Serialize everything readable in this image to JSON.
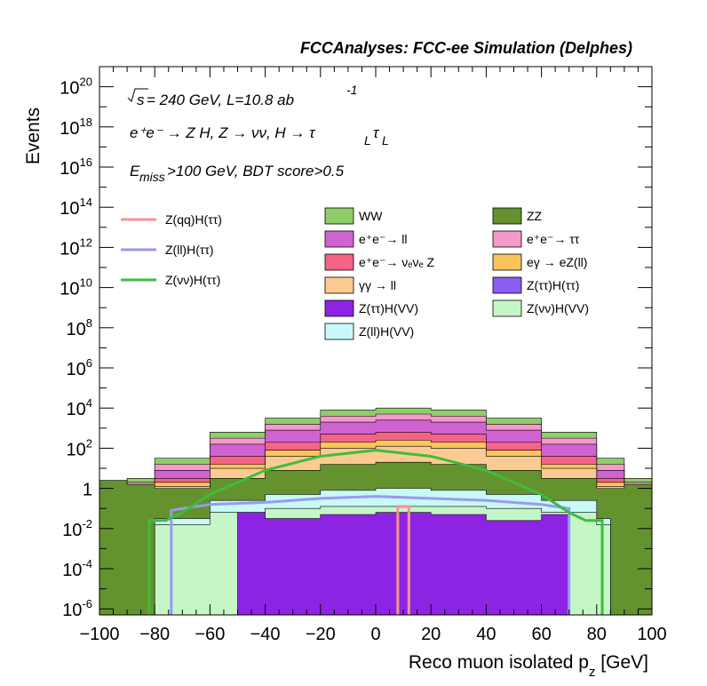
{
  "header": {
    "title": "FCCAnalyses: FCC-ee Simulation (Delphes)",
    "line1_sqrt": "s",
    "line1_text": " = 240 GeV, L=10.8 ab",
    "line1_exp": "-1",
    "line2_text": "e⁺e⁻ → Z H, Z → νν, H → τ",
    "line2_sub1": "L",
    "line2_tau": "τ",
    "line2_sub2": "L",
    "line3_pre": "E",
    "line3_sub": "miss",
    "line3_post": ">100 GeV, BDT score>0.5"
  },
  "chart_data": {
    "type": "area",
    "xlabel": "Reco muon isolated p",
    "xlabel_sub": "z",
    "xlabel_unit": " [GeV]",
    "ylabel": "Events",
    "xlim": [
      -100,
      100
    ],
    "ylim_log10": [
      -6.3,
      21
    ],
    "y_scale": "log",
    "x_ticks": [
      -100,
      -80,
      -60,
      -40,
      -20,
      0,
      20,
      40,
      60,
      80,
      100
    ],
    "y_tick_labels": [
      {
        "exp": -6,
        "base": "10",
        "sup": "-6"
      },
      {
        "exp": -4,
        "base": "10",
        "sup": "-4"
      },
      {
        "exp": -2,
        "base": "10",
        "sup": "-2"
      },
      {
        "exp": 0,
        "base": "1",
        "sup": ""
      },
      {
        "exp": 2,
        "base": "10",
        "sup": "2"
      },
      {
        "exp": 4,
        "base": "10",
        "sup": "4"
      },
      {
        "exp": 6,
        "base": "10",
        "sup": "6"
      },
      {
        "exp": 8,
        "base": "10",
        "sup": "8"
      },
      {
        "exp": 10,
        "base": "10",
        "sup": "10"
      },
      {
        "exp": 12,
        "base": "10",
        "sup": "12"
      },
      {
        "exp": 14,
        "base": "10",
        "sup": "14"
      },
      {
        "exp": 16,
        "base": "10",
        "sup": "16"
      },
      {
        "exp": 18,
        "base": "10",
        "sup": "18"
      },
      {
        "exp": 20,
        "base": "10",
        "sup": "20"
      }
    ],
    "stack_layers_top_log10": [
      {
        "name": "WW",
        "color": "#8fcd6a",
        "x": [
          -100,
          -90,
          -80,
          -60,
          -40,
          -20,
          0,
          20,
          40,
          60,
          80,
          90,
          100
        ],
        "y": [
          -0.3,
          0.5,
          1.5,
          2.8,
          3.5,
          3.9,
          4.0,
          3.9,
          3.5,
          2.8,
          1.5,
          0.5,
          -0.3
        ]
      },
      {
        "name": "e⁺e⁻ → ττ",
        "color": "#f49ac8",
        "x": [
          -100,
          -90,
          -80,
          -60,
          -40,
          -20,
          0,
          20,
          40,
          60,
          80,
          90,
          100
        ],
        "y": [
          -0.5,
          0.3,
          1.2,
          2.5,
          3.2,
          3.6,
          3.7,
          3.6,
          3.2,
          2.5,
          1.2,
          0.3,
          -0.5
        ]
      },
      {
        "name": "e⁺e⁻ → ll",
        "color": "#d063d2",
        "x": [
          -100,
          -90,
          -80,
          -60,
          -40,
          -20,
          0,
          20,
          40,
          60,
          80,
          90,
          100
        ],
        "y": [
          -0.6,
          0.1,
          0.9,
          2.2,
          2.9,
          3.3,
          3.4,
          3.3,
          2.9,
          2.2,
          0.9,
          0.1,
          -0.6
        ]
      },
      {
        "name": "e⁺e⁻ → νₑνₑ Z",
        "color": "#f56387",
        "x": [
          -100,
          -90,
          -80,
          -60,
          -40,
          -20,
          0,
          20,
          40,
          60,
          80,
          90,
          100
        ],
        "y": [
          -0.7,
          -0.2,
          0.5,
          1.6,
          2.3,
          2.7,
          2.8,
          2.7,
          2.3,
          1.6,
          0.5,
          -0.2,
          -0.7
        ]
      },
      {
        "name": "eγ → eZ(ll)",
        "color": "#f9c55a",
        "x": [
          -100,
          -90,
          -80,
          -60,
          -40,
          -20,
          0,
          20,
          40,
          60,
          80,
          90,
          100
        ],
        "y": [
          -0.8,
          -0.4,
          0.3,
          1.2,
          1.9,
          2.3,
          2.4,
          2.3,
          1.9,
          1.2,
          0.3,
          -0.4,
          -0.8
        ]
      },
      {
        "name": "γγ → ll",
        "color": "#fccb92",
        "x": [
          -100,
          -90,
          -80,
          -60,
          -40,
          -20,
          0,
          20,
          40,
          60,
          80,
          90,
          100
        ],
        "y": [
          -0.9,
          -0.6,
          0.1,
          1.0,
          1.6,
          2.0,
          2.1,
          2.0,
          1.6,
          1.0,
          0.1,
          -0.6,
          -0.9
        ]
      },
      {
        "name": "ZZ",
        "color": "#64922f",
        "x": [
          -100,
          -90,
          -80,
          -60,
          -40,
          -20,
          0,
          20,
          40,
          60,
          80,
          90,
          100
        ],
        "y": [
          0.4,
          0.2,
          0.0,
          0.5,
          0.9,
          1.2,
          1.3,
          1.2,
          0.9,
          0.5,
          0.0,
          0.2,
          0.4
        ]
      },
      {
        "name": "Z(ll)H(VV)",
        "color": "#c9f8f8",
        "x": [
          -100,
          -85,
          -80,
          -60,
          -40,
          -20,
          0,
          20,
          40,
          60,
          80,
          85,
          100
        ],
        "y": [
          -6.3,
          -6.3,
          -1.5,
          -0.6,
          -0.3,
          -0.1,
          0.0,
          -0.1,
          -0.3,
          -0.6,
          -1.5,
          -6.3,
          -6.3
        ]
      },
      {
        "name": "Z(νν)H(VV)",
        "color": "#c5f6c7",
        "x": [
          -100,
          -85,
          -80,
          -60,
          -40,
          -20,
          0,
          20,
          40,
          60,
          80,
          85,
          100
        ],
        "y": [
          -6.3,
          -6.3,
          -1.8,
          -1.2,
          -1.0,
          -0.9,
          -0.9,
          -0.9,
          -1.0,
          -1.2,
          -1.8,
          -6.3,
          -6.3
        ]
      },
      {
        "name": "Z(ττ)H(VV)",
        "color": "#8d24e4",
        "x": [
          -100,
          -70,
          -60,
          -50,
          -40,
          -20,
          0,
          20,
          40,
          60,
          70,
          100
        ],
        "y": [
          -6.3,
          -6.3,
          -6.3,
          -1.2,
          -1.5,
          -1.3,
          -1.2,
          -1.3,
          -1.6,
          -1.3,
          -6.3,
          -6.3
        ]
      }
    ],
    "signal_lines": [
      {
        "name": "Z(qq)H(ττ)",
        "color": "#f49494",
        "x": [
          8,
          8,
          12,
          12
        ],
        "y": [
          -6.3,
          -0.9,
          -0.9,
          -6.3
        ]
      },
      {
        "name": "Z(ll)H(ττ)",
        "color": "#9999f0",
        "x": [
          -74,
          -74,
          -70,
          -60,
          -40,
          -20,
          0,
          20,
          40,
          60,
          70,
          70
        ],
        "y": [
          -6.3,
          -1.1,
          -1.0,
          -0.8,
          -0.7,
          -0.5,
          -0.4,
          -0.5,
          -0.6,
          -0.8,
          -1.0,
          -6.3
        ]
      },
      {
        "name": "Z(νν)H(ττ)",
        "color": "#3dbd3d",
        "x": [
          -82,
          -82,
          -76,
          -70,
          -60,
          -40,
          -20,
          0,
          20,
          40,
          60,
          70,
          76,
          82,
          82
        ],
        "y": [
          -6.3,
          -1.6,
          -1.6,
          -1.2,
          -0.3,
          0.9,
          1.6,
          1.9,
          1.6,
          0.9,
          -0.3,
          -1.2,
          -1.6,
          -1.6,
          -6.3
        ]
      }
    ],
    "legend_left": [
      {
        "label": "Z(qq)H(ττ)",
        "color": "#f49494",
        "kind": "line"
      },
      {
        "label": "Z(ll)H(ττ)",
        "color": "#9999f0",
        "kind": "line"
      },
      {
        "label": "Z(νν)H(ττ)",
        "color": "#3dbd3d",
        "kind": "line"
      }
    ],
    "legend_fill": [
      {
        "label": "WW",
        "color": "#8fcd6a"
      },
      {
        "label": "ZZ",
        "color": "#64922f"
      },
      {
        "label": "e⁺e⁻→ ll",
        "color": "#d063d2"
      },
      {
        "label": "e⁺e⁻→ ττ",
        "color": "#f49ac8"
      },
      {
        "label": "e⁺e⁻→ νₑνₑ Z",
        "color": "#f56387"
      },
      {
        "label": "eγ → eZ(ll)",
        "color": "#f9c55a"
      },
      {
        "label": "γγ → ll",
        "color": "#fccb92"
      },
      {
        "label": "Z(ττ)H(ττ)",
        "color": "#8d5cf0"
      },
      {
        "label": "Z(ττ)H(VV)",
        "color": "#8d24e4"
      },
      {
        "label": "Z(νν)H(VV)",
        "color": "#c5f6c7"
      },
      {
        "label": "Z(ll)H(VV)",
        "color": "#c9f8f8"
      }
    ]
  }
}
